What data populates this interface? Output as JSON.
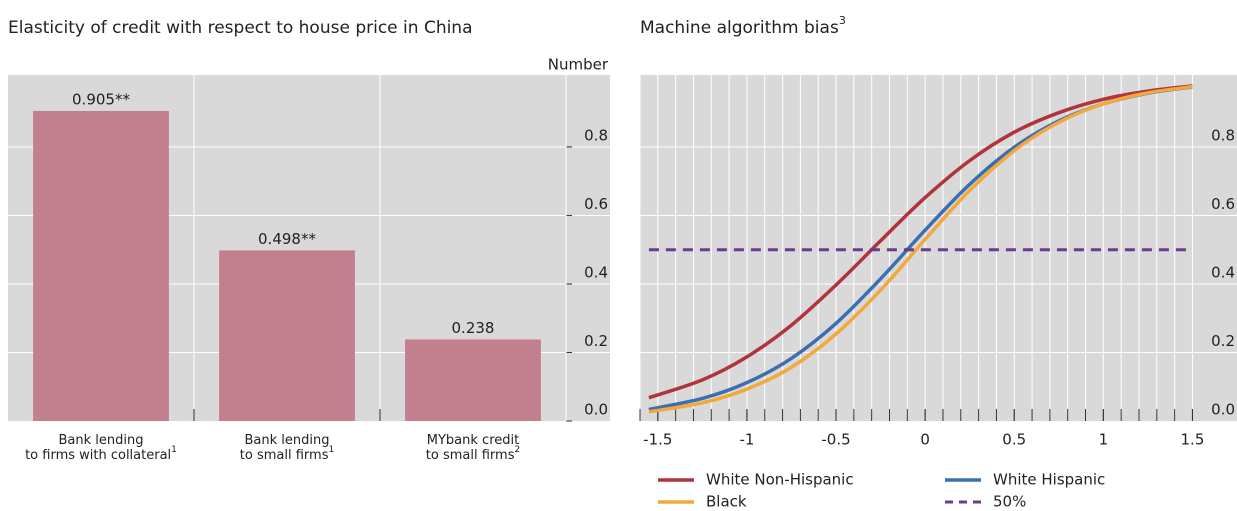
{
  "chart_data": [
    {
      "type": "bar",
      "title": "Elasticity of credit with respect to house price in China",
      "y_axis_label": "Number",
      "categories": [
        [
          "Bank lending",
          "to firms with collateral"
        ],
        [
          "Bank lending",
          "to small firms"
        ],
        [
          "MYbank credit",
          "to small firms"
        ]
      ],
      "category_notes": [
        "1",
        "1",
        "2"
      ],
      "values": [
        0.905,
        0.498,
        0.238
      ],
      "value_labels": [
        "0.905**",
        "0.498**",
        "0.238"
      ],
      "color": "#c27f8e",
      "ylim": [
        0,
        1.01
      ],
      "yticks": [
        {
          "value": 0,
          "label": "0.0"
        },
        0.2,
        0.4,
        0.6,
        0.8
      ],
      "grid": true
    },
    {
      "type": "line",
      "title": "Machine algorithm bias",
      "title_note": "3",
      "x": [
        -1.55,
        -1.25,
        -1,
        -0.75,
        -0.5,
        -0.25,
        0,
        0.25,
        0.5,
        0.75,
        1,
        1.25,
        1.5
      ],
      "xlim": [
        -1.6,
        1.75
      ],
      "xticks": [
        -1.5,
        -1,
        -0.5,
        0,
        0.5,
        1,
        1.5
      ],
      "minor_xticks": [
        -1.6,
        -1.5,
        -1.4,
        -1.3,
        -1.2,
        -1.1,
        -1,
        -0.9,
        -0.8,
        -0.7,
        -0.6,
        -0.5,
        -0.4,
        -0.3,
        -0.2,
        -0.1,
        0,
        0.1,
        0.2,
        0.3,
        0.4,
        0.5,
        0.6,
        0.7,
        0.8,
        0.9,
        1,
        1.1,
        1.2,
        1.3,
        1.4,
        1.5
      ],
      "ylim": [
        0,
        1.01
      ],
      "yticks": [
        {
          "value": 0,
          "label": "0.0"
        },
        0.2,
        0.4,
        0.6,
        0.8
      ],
      "grid": true,
      "legend": "bottom",
      "series": [
        {
          "name": "White Non-Hispanic",
          "color": "#b0343a",
          "values": [
            0.068,
            0.12,
            0.187,
            0.28,
            0.397,
            0.526,
            0.652,
            0.76,
            0.843,
            0.9,
            0.939,
            0.963,
            0.978
          ]
        },
        {
          "name": "White Hispanic",
          "color": "#3d6fb0",
          "values": [
            0.034,
            0.066,
            0.112,
            0.183,
            0.285,
            0.415,
            0.557,
            0.691,
            0.799,
            0.876,
            0.926,
            0.957,
            0.975
          ]
        },
        {
          "name": "Black",
          "color": "#f2a93b",
          "values": [
            0.027,
            0.053,
            0.093,
            0.157,
            0.254,
            0.382,
            0.53,
            0.673,
            0.789,
            0.872,
            0.926,
            0.958,
            0.976
          ]
        },
        {
          "name": "50%",
          "color": "#6a3d8a",
          "dashed": true,
          "values": [
            0.5,
            0.5,
            0.5,
            0.5,
            0.5,
            0.5,
            0.5,
            0.5,
            0.5,
            0.5,
            0.5,
            0.5,
            0.5
          ]
        }
      ]
    }
  ]
}
